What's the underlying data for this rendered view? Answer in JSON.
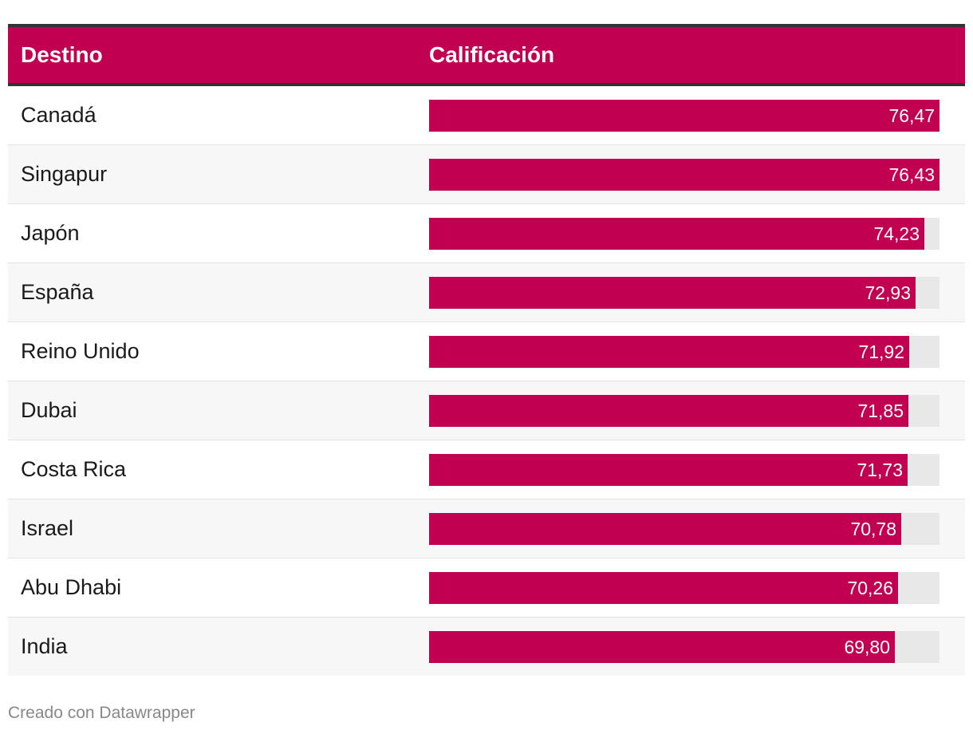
{
  "header": {
    "col1": "Destino",
    "col2": "Calificación"
  },
  "chart_data": {
    "type": "bar",
    "categories": [
      "Canadá",
      "Singapur",
      "Japón",
      "España",
      "Reino Unido",
      "Dubai",
      "Costa Rica",
      "Israel",
      "Abu Dhabi",
      "India"
    ],
    "values": [
      76.47,
      76.43,
      74.23,
      72.93,
      71.92,
      71.85,
      71.73,
      70.78,
      70.26,
      69.8
    ],
    "labels": [
      "76,47",
      "76,43",
      "74,23",
      "72,93",
      "71,92",
      "71,85",
      "71,73",
      "70,78",
      "70,26",
      "69,80"
    ],
    "xlim": [
      0,
      76.47
    ],
    "bar_color": "#c20052",
    "track_color": "#e8e8e8"
  },
  "footer": "Creado con Datawrapper"
}
